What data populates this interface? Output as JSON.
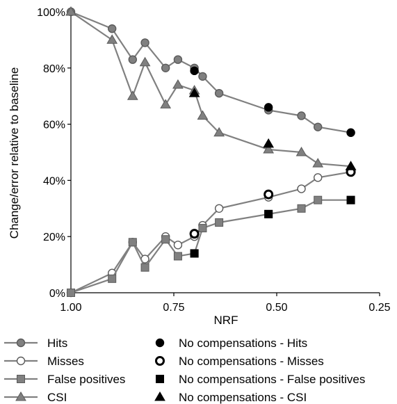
{
  "chart_data": {
    "type": "line",
    "xlabel": "NRF",
    "ylabel": "Change/error relative to baseline",
    "xlim": [
      1.0,
      0.25
    ],
    "x_reversed": true,
    "ylim": [
      0,
      100
    ],
    "y_unit": "%",
    "xticks": [
      "1.00",
      "0.75",
      "0.50",
      "0.25"
    ],
    "yticks": [
      "0%",
      "20%",
      "40%",
      "60%",
      "80%",
      "100%"
    ],
    "grid": false,
    "legend_position": "bottom",
    "x": [
      1.0,
      0.9,
      0.85,
      0.82,
      0.77,
      0.74,
      0.7,
      0.68,
      0.64,
      0.52,
      0.44,
      0.4,
      0.32
    ],
    "series": [
      {
        "name": "Hits",
        "marker": "circle",
        "fill": "#808080",
        "values": [
          100,
          94,
          83,
          89,
          80,
          83,
          80,
          77,
          71,
          65,
          63,
          59,
          57
        ]
      },
      {
        "name": "Misses",
        "marker": "circle-open",
        "fill": "#ffffff",
        "values": [
          0,
          7,
          18,
          12,
          20,
          17,
          20,
          24,
          30,
          34,
          37,
          41,
          43
        ]
      },
      {
        "name": "False positives",
        "marker": "square",
        "fill": "#808080",
        "values": [
          0,
          5,
          18,
          9,
          19,
          13,
          14,
          23,
          25,
          28,
          30,
          33,
          33
        ]
      },
      {
        "name": "CSI",
        "marker": "triangle",
        "fill": "#808080",
        "values": [
          100,
          90,
          70,
          82,
          67,
          74,
          72,
          63,
          57,
          51,
          50,
          46,
          45
        ]
      }
    ],
    "no_compensation_series": [
      {
        "name": "No compensations - Hits",
        "marker": "circle",
        "x": [
          0.7,
          0.52,
          0.32
        ],
        "values": [
          79,
          66,
          57
        ]
      },
      {
        "name": "No compensations - Misses",
        "marker": "circle-open",
        "x": [
          0.7,
          0.52,
          0.32
        ],
        "values": [
          21,
          35,
          43
        ]
      },
      {
        "name": "No compensations - False positives",
        "marker": "square",
        "x": [
          0.7,
          0.52,
          0.32
        ],
        "values": [
          14,
          28,
          33
        ]
      },
      {
        "name": "No compensations - CSI",
        "marker": "triangle",
        "x": [
          0.7,
          0.52,
          0.32
        ],
        "values": [
          71,
          53,
          45
        ]
      }
    ]
  },
  "colors": {
    "series_line": "#808080",
    "series_fill": "#808080",
    "series_stroke": "#5a5a5a",
    "no_comp": "#000000",
    "axis": "#000000"
  }
}
